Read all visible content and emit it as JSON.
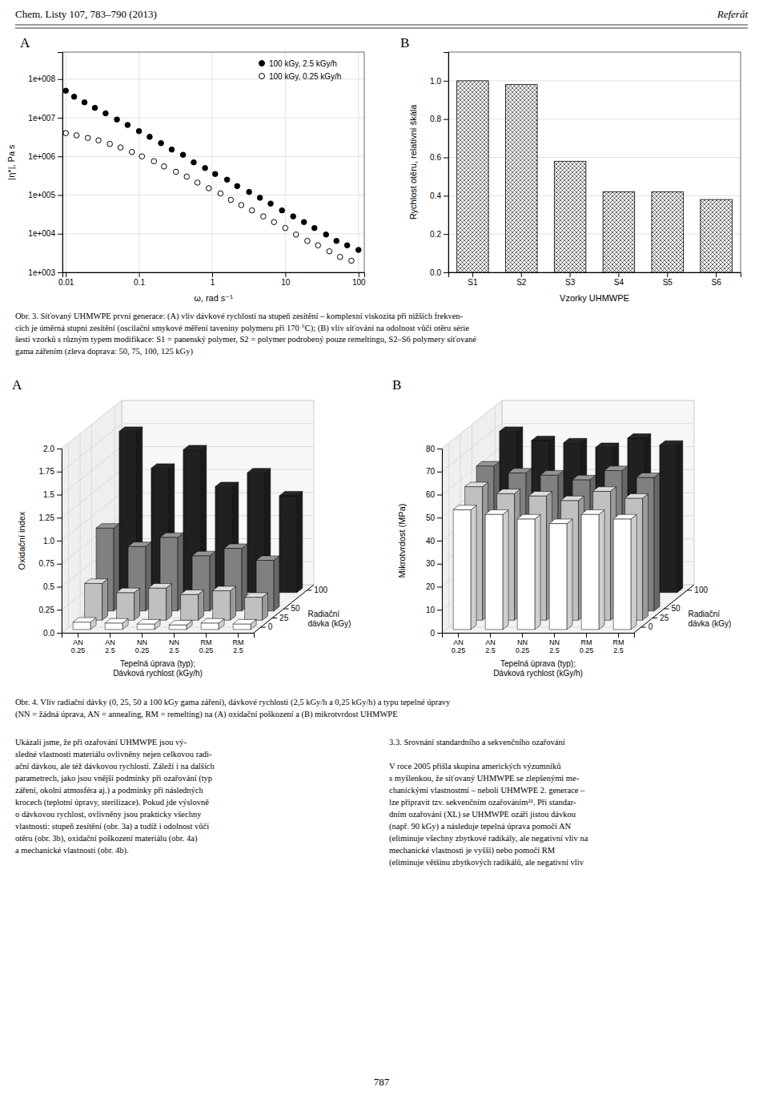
{
  "page": {
    "header_left": "Chem. Listy 107, 783–790 (2013)",
    "header_right": "Referát",
    "caption1": [
      "Obr. 3. Síťovaný UHMWPE první generace: (A) vliv dávkové rychlosti na stupeň zesítění – komplexní viskozita při nižších frekven-",
      "cích je úměrná stupni zesítění (oscilační smykové měření taveniny polymeru při 170 °C); (B) vliv síťování na odolnost vůči otěru série",
      "šesti vzorků s různým typem modifikace: S1 = panenský polymer, S2 = polymer podrobený pouze remeltingu, S2–S6 polymery síťované",
      "gama zářením (zleva doprava: 50, 75, 100, 125 kGy)"
    ],
    "caption2": [
      "Obr. 4. Vliv radiační dávky (0, 25, 50 a 100 kGy gama záření), dávkové rychlosti (2,5 kGy/h a 0,25 kGy/h) a typu tepelné úpravy",
      "(NN = žádná úprava, AN = annealing, RM = remelting) na (A) oxidační poškození a (B) mikrotvrdost UHMWPE"
    ],
    "text_left": [
      "Ukázali jsme, že při ozařování UHMWPE jsou vý-",
      "sledné vlastnosti materiálu ovlivněny nejen celkovou radi-",
      "ační dávkou, ale též dávkovou rychlostí. Záleží i na dalších",
      "parametrech, jako jsou vnější podmínky při ozařování (typ",
      "záření, okolní atmosféra aj.) a podmínky při následných",
      "krocech (teplotní úpravy, sterilizace). Pokud jde výslovně",
      "o dávkovou rychlost, ovlivněny jsou prakticky všechny",
      "vlastnosti: stupeň zesítění (obr. 3a) a tudíž i odolnost vůči",
      "otěru (obr. 3b), oxidační poškození materiálu (obr. 4a)",
      "a mechanické vlastnosti (obr. 4b)."
    ],
    "text_right_heading": "3.3. Srovnání standardního a sekvenčního ozařování",
    "text_right": [
      "V roce 2005 přišla skupina amerických výzumníků",
      "s myšlenkou, že síťovaný UHMWPE se zlepšenými me-",
      "chanickými vlastnostmi – neboli UHMWPE 2. generace –",
      "lze připravit tzv. sekvenčním ozařováním²². Při standar-",
      "dním ozařování (XL) se UHMWPE ozáří jistou dávkou",
      "(např. 90 kGy) a následuje tepelná úprava pomočí AN",
      "(eliminuje všechny zbytkové radikály, ale negativní vliv na",
      "mechanické vlastnosti je vyšší) nebo pomočí RM",
      "(eliminuje většinu zbytkových radikálů, ale negativní vliv"
    ],
    "page_number": "787"
  },
  "chart_data": [
    {
      "type": "scatter",
      "title": "A",
      "xlabel": "ω, rad s⁻¹",
      "ylabel": "|η*|, Pa s",
      "log": true,
      "xlim": [
        0.009,
        120
      ],
      "ylim": [
        1000,
        500000000
      ],
      "xticks": [
        0.01,
        0.1,
        1,
        10,
        100
      ],
      "yticks": [
        {
          "value": 1000,
          "label": "1e+003"
        },
        {
          "value": 10000,
          "label": "1e+004"
        },
        {
          "value": 100000,
          "label": "1e+005"
        },
        {
          "value": 1000000,
          "label": "1e+006"
        },
        {
          "value": 10000000,
          "label": "1e+007"
        },
        {
          "value": 100000000,
          "label": "1e+008"
        }
      ],
      "grid": true,
      "legend": "upper right",
      "series": [
        {
          "name": "100 kGy, 2.5 kGy/h",
          "color": "#000000",
          "marker": "filled-circle",
          "x": [
            0.01,
            0.013,
            0.018,
            0.025,
            0.035,
            0.05,
            0.07,
            0.1,
            0.14,
            0.2,
            0.28,
            0.4,
            0.56,
            0.8,
            1.1,
            1.6,
            2.2,
            3.2,
            4.5,
            6.3,
            9,
            12.8,
            18,
            25,
            36,
            50,
            70,
            100
          ],
          "values": [
            50000000,
            35000000,
            25000000,
            18000000,
            13000000,
            9000000,
            6500000,
            4500000,
            3200000,
            2200000,
            1500000,
            1100000,
            700000,
            500000,
            350000,
            250000,
            170000,
            120000,
            85000,
            60000,
            40000,
            28000,
            20000,
            14000,
            9500,
            6500,
            5000,
            3800
          ]
        },
        {
          "name": "100 kGy, 0.25 kGy/h",
          "color": "#000000",
          "marker": "open-circle",
          "x": [
            0.01,
            0.014,
            0.02,
            0.028,
            0.04,
            0.056,
            0.08,
            0.11,
            0.16,
            0.22,
            0.32,
            0.45,
            0.63,
            0.9,
            1.3,
            1.8,
            2.5,
            3.5,
            5,
            7,
            10,
            14,
            20,
            28,
            40,
            56,
            80
          ],
          "values": [
            4000000,
            3500000,
            3000000,
            2600000,
            2100000,
            1700000,
            1300000,
            1000000,
            750000,
            550000,
            400000,
            300000,
            210000,
            150000,
            110000,
            75000,
            55000,
            40000,
            28000,
            20000,
            14000,
            9500,
            6500,
            5000,
            3500,
            2500,
            2000
          ]
        }
      ]
    },
    {
      "type": "bar",
      "title": "B",
      "xlabel": "Vzorky UHMWPE",
      "ylabel": "Rychlost otěru, relativní škála",
      "categories": [
        "S1",
        "S2",
        "S3",
        "S4",
        "S5",
        "S6"
      ],
      "values": [
        1.0,
        0.98,
        0.58,
        0.42,
        0.42,
        0.38
      ],
      "color": "#ffffff",
      "ylim": [
        0,
        1.15
      ],
      "yticks": [
        {
          "value": 0,
          "label": "0.0"
        },
        0.2,
        0.4,
        0.6,
        0.8,
        {
          "value": 1,
          "label": "1.0"
        }
      ],
      "grid": "y"
    },
    {
      "type": "bar3d",
      "title": "A",
      "xlabel": "Tepelná úprava (typ);\nDávková rychlost (kGy/h)",
      "ylabel": "Radiační\ndávka (kGy)",
      "zlabel": "Oxidační index",
      "categories": [
        "AN\n0.25",
        "AN\n2.5",
        "NN\n0.25",
        "NN\n2.5",
        "RM\n0.25",
        "RM\n2.5"
      ],
      "ylim": [
        -15,
        115
      ],
      "yticks": [
        0,
        25,
        50,
        100
      ],
      "zlim": [
        0,
        2.0
      ],
      "zticks": [
        {
          "value": 0,
          "label": "0.0"
        },
        0.25,
        0.5,
        0.75,
        {
          "value": 1,
          "label": "1.0"
        },
        1.25,
        1.5,
        1.75,
        {
          "value": 2,
          "label": "2.0"
        }
      ],
      "grid": true,
      "series": [
        {
          "y": 0,
          "color": "#ffffff",
          "values": [
            0.08,
            0.07,
            0.06,
            0.05,
            0.07,
            0.06
          ]
        },
        {
          "y": 25,
          "color": "#c0c0c0",
          "values": [
            0.4,
            0.3,
            0.35,
            0.28,
            0.32,
            0.25
          ]
        },
        {
          "y": 50,
          "color": "#808080",
          "values": [
            0.9,
            0.7,
            0.8,
            0.6,
            0.68,
            0.55
          ]
        },
        {
          "y": 100,
          "color": "#202020",
          "values": [
            1.75,
            1.35,
            1.55,
            1.15,
            1.3,
            1.05
          ]
        }
      ]
    },
    {
      "type": "bar3d",
      "title": "B",
      "xlabel": "Tepelná úprava (typ);\nDávková rychlost (kGy/h)",
      "ylabel": "Radiační\ndávka (kGy)",
      "zlabel": "Mikrotvrdost (MPa)",
      "categories": [
        "AN\n0.25",
        "AN\n2.5",
        "NN\n0.25",
        "NN\n2.5",
        "RM\n0.25",
        "RM\n2.5"
      ],
      "ylim": [
        -15,
        115
      ],
      "yticks": [
        0,
        25,
        50,
        100
      ],
      "zlim": [
        0,
        80
      ],
      "zticks": [
        0,
        10,
        20,
        30,
        40,
        50,
        60,
        70,
        80
      ],
      "grid": true,
      "series": [
        {
          "y": 0,
          "color": "#ffffff",
          "values": [
            52,
            50,
            48,
            46,
            50,
            48
          ]
        },
        {
          "y": 25,
          "color": "#c0c0c0",
          "values": [
            58,
            55,
            54,
            52,
            56,
            53
          ]
        },
        {
          "y": 50,
          "color": "#808080",
          "values": [
            63,
            60,
            59,
            57,
            61,
            58
          ]
        },
        {
          "y": 100,
          "color": "#202020",
          "values": [
            70,
            66,
            65,
            63,
            67,
            64
          ]
        }
      ]
    }
  ]
}
